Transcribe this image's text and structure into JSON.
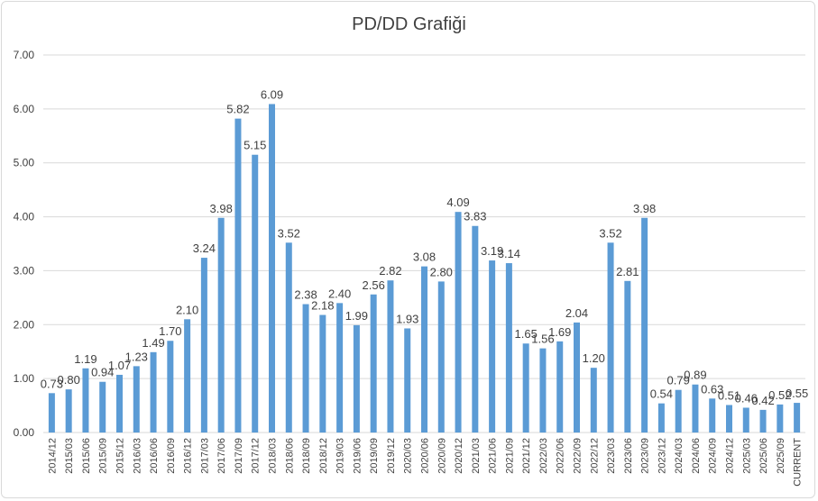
{
  "chart_data": {
    "type": "bar",
    "title": "PD/DD Grafiği",
    "xlabel": "",
    "ylabel": "",
    "ylim": [
      0,
      7
    ],
    "yticks": [
      "0.00",
      "1.00",
      "2.00",
      "3.00",
      "4.00",
      "5.00",
      "6.00",
      "7.00"
    ],
    "grid": true,
    "bar_color": "#5b9bd5",
    "categories": [
      "2014/12",
      "2015/03",
      "2015/06",
      "2015/09",
      "2015/12",
      "2016/03",
      "2016/06",
      "2016/09",
      "2016/12",
      "2017/03",
      "2017/06",
      "2017/09",
      "2017/12",
      "2018/03",
      "2018/06",
      "2018/09",
      "2018/12",
      "2019/03",
      "2019/06",
      "2019/09",
      "2019/12",
      "2020/03",
      "2020/06",
      "2020/09",
      "2020/12",
      "2021/03",
      "2021/06",
      "2021/09",
      "2021/12",
      "2022/03",
      "2022/06",
      "2022/09",
      "2022/12",
      "2023/03",
      "2023/06",
      "2023/09",
      "2023/12",
      "2024/03",
      "2024/06",
      "2024/09",
      "2024/12",
      "2025/03",
      "2025/06",
      "2025/09",
      "CURRENT"
    ],
    "values": [
      0.73,
      0.8,
      1.19,
      0.94,
      1.07,
      1.23,
      1.49,
      1.7,
      2.1,
      3.24,
      3.98,
      5.82,
      5.15,
      6.09,
      3.52,
      2.38,
      2.18,
      2.4,
      1.99,
      2.56,
      2.82,
      1.93,
      3.08,
      2.8,
      4.09,
      3.83,
      3.19,
      3.14,
      1.65,
      1.56,
      1.69,
      2.04,
      1.2,
      3.52,
      2.81,
      3.98,
      0.54,
      0.79,
      0.89,
      0.63,
      0.51,
      0.46,
      0.42,
      0.52,
      0.55
    ]
  }
}
